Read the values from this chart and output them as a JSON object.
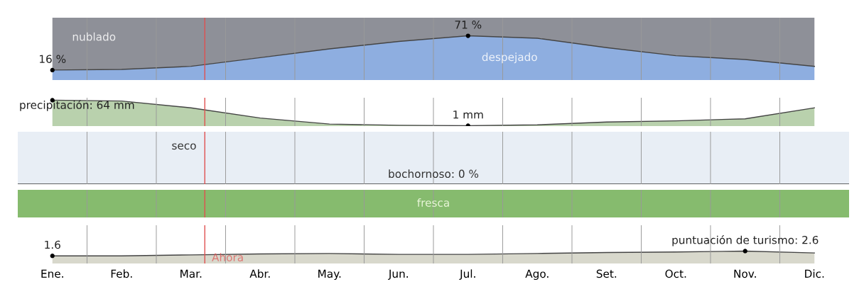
{
  "chart_data": [
    {
      "type": "area",
      "stacked": true,
      "categories": [
        "Ene.",
        "Feb.",
        "Mar.",
        "Abr.",
        "May.",
        "Jun.",
        "Jul.",
        "Ago.",
        "Set.",
        "Oct.",
        "Nov.",
        "Dic."
      ],
      "ylim": [
        0,
        100
      ],
      "tick_labels": false,
      "grid": "x",
      "series": [
        {
          "name": "despejado",
          "color": "#8eaee0",
          "values": [
            16,
            17,
            22,
            36,
            50,
            62,
            71,
            67,
            52,
            39,
            33,
            22
          ],
          "value_labels": [
            "16 %",
            null,
            null,
            null,
            null,
            null,
            "71 %",
            null,
            null,
            null,
            null,
            null
          ]
        },
        {
          "name": "nublado",
          "color": "#8e9098",
          "values": [
            84,
            83,
            78,
            64,
            50,
            38,
            29,
            33,
            48,
            61,
            67,
            78
          ]
        }
      ],
      "ref_lines": [
        {
          "axis": "x",
          "value": "Mar.",
          "color": "#e05050"
        }
      ]
    },
    {
      "type": "area",
      "categories": [
        "Ene.",
        "Feb.",
        "Mar.",
        "Abr.",
        "May.",
        "Jun.",
        "Jul.",
        "Ago.",
        "Set.",
        "Oct.",
        "Nov.",
        "Dic."
      ],
      "ylim": [
        0,
        70
      ],
      "tick_labels": false,
      "grid": "x",
      "series": [
        {
          "color": "#b9d1ad",
          "values": [
            64,
            62,
            45,
            20,
            5,
            2,
            1,
            3,
            10,
            13,
            18,
            45
          ],
          "value_labels": [
            "precipitación: 64 mm",
            null,
            null,
            null,
            null,
            null,
            "1 mm",
            null,
            null,
            null,
            null,
            null
          ]
        }
      ],
      "ref_lines": [
        {
          "axis": "x",
          "value": "Mar.",
          "color": "#e05050"
        }
      ]
    },
    {
      "type": "other",
      "color": "#e8eef5",
      "annotations": [
        "seco",
        "bochornoso: 0 %"
      ]
    },
    {
      "type": "other",
      "color": "#86bb6e",
      "annotations": [
        "fresca"
      ]
    },
    {
      "type": "area",
      "categories": [
        "Ene.",
        "Feb.",
        "Mar.",
        "Abr.",
        "May.",
        "Jun.",
        "Jul.",
        "Ago.",
        "Set.",
        "Oct.",
        "Nov.",
        "Dic."
      ],
      "ylim": [
        0,
        8
      ],
      "tick_labels": "x",
      "grid": "x",
      "series": [
        {
          "color": "#d8d8cc",
          "values": [
            1.6,
            1.6,
            1.8,
            2.0,
            2.1,
            1.9,
            1.9,
            2.1,
            2.3,
            2.4,
            2.6,
            2.2
          ],
          "value_labels": [
            "1.6",
            null,
            null,
            null,
            null,
            null,
            null,
            null,
            null,
            null,
            "puntuación de turismo: 2.6",
            null
          ]
        }
      ],
      "ref_lines": [
        {
          "axis": "x",
          "value": "Mar.",
          "label": "Ahora",
          "color": "#e05050"
        }
      ]
    }
  ]
}
